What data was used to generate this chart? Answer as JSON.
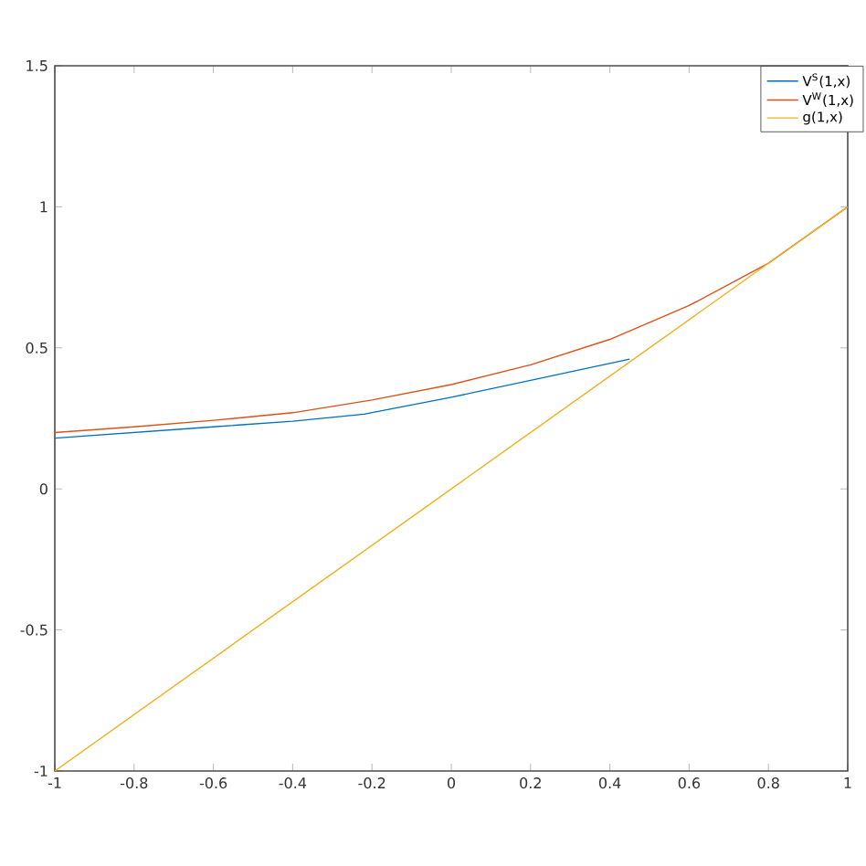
{
  "chart_data": {
    "type": "line",
    "xlim": [
      -1,
      1
    ],
    "ylim": [
      -1,
      1.5
    ],
    "xticks": [
      -1,
      -0.8,
      -0.6,
      -0.4,
      -0.2,
      0,
      0.2,
      0.4,
      0.6,
      0.8,
      1
    ],
    "yticks": [
      -1,
      -0.5,
      0,
      0.5,
      1,
      1.5
    ],
    "legend": "top right",
    "grid": false,
    "series": [
      {
        "name": "V$^{S}$(1,x)",
        "color": "#0072bd",
        "x": [
          -1,
          -0.8,
          -0.6,
          -0.4,
          -0.22,
          0,
          0.2,
          0.45
        ],
        "values": [
          0.18,
          0.2,
          0.22,
          0.24,
          0.265,
          0.325,
          0.385,
          0.46
        ]
      },
      {
        "name": "V$^{W}$(1,x)",
        "color": "#d95319",
        "x": [
          -1,
          -0.8,
          -0.6,
          -0.4,
          -0.2,
          0,
          0.2,
          0.4,
          0.6,
          0.8,
          1
        ],
        "values": [
          0.2,
          0.22,
          0.243,
          0.27,
          0.315,
          0.37,
          0.44,
          0.53,
          0.65,
          0.8,
          1.0
        ]
      },
      {
        "name": "g(1,x)",
        "color": "#edb120",
        "x": [
          -1,
          1
        ],
        "values": [
          -1,
          1
        ]
      }
    ]
  }
}
